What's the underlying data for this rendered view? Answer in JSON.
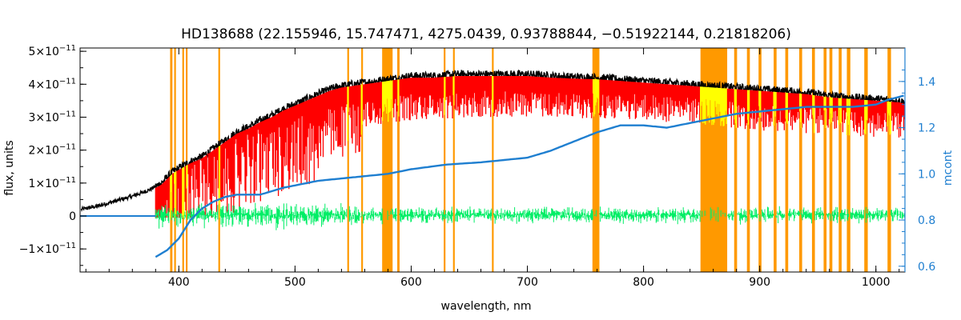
{
  "chart_data": {
    "type": "line",
    "title": "HD138688    (22.155946, 15.747471, 4275.0439, 0.93788844, −0.51922144, 0.21818206)",
    "xlabel": "wavelength, nm",
    "ylabel": "flux, units",
    "y2label": "mcont",
    "xlim": [
      315,
      1025
    ],
    "ylim": [
      -1.7e-11,
      5.1e-11
    ],
    "y2lim": [
      0.575,
      1.545
    ],
    "x_ticks": [
      {
        "value": 400,
        "label": "400"
      },
      {
        "value": 500,
        "label": "500"
      },
      {
        "value": 600,
        "label": "600"
      },
      {
        "value": 700,
        "label": "700"
      },
      {
        "value": 800,
        "label": "800"
      },
      {
        "value": 900,
        "label": "900"
      },
      {
        "value": 1000,
        "label": "1000"
      }
    ],
    "y_ticks": [
      {
        "value": -1e-11,
        "mant": "−1×10",
        "exp": "−11"
      },
      {
        "value": 0,
        "mant": "0",
        "exp": ""
      },
      {
        "value": 1e-11,
        "mant": "1×10",
        "exp": "−11"
      },
      {
        "value": 2e-11,
        "mant": "2×10",
        "exp": "−11"
      },
      {
        "value": 3e-11,
        "mant": "3×10",
        "exp": "−11"
      },
      {
        "value": 4e-11,
        "mant": "4×10",
        "exp": "−11"
      },
      {
        "value": 5e-11,
        "mant": "5×10",
        "exp": "−11"
      }
    ],
    "y2_ticks": [
      {
        "value": 0.6,
        "label": "0.6"
      },
      {
        "value": 0.8,
        "label": "0.8"
      },
      {
        "value": 1.0,
        "label": "1.0"
      },
      {
        "value": 1.2,
        "label": "1.2"
      },
      {
        "value": 1.4,
        "label": "1.4"
      }
    ],
    "grid": false,
    "colors": {
      "observed": "#000000",
      "model": "#ff0000",
      "masked_model": "#ffff00",
      "residuals": "#00ee66",
      "continuum": "#1f7fd0",
      "mask": "#ff9900",
      "zero_line": "#1f7fd0"
    },
    "series": [
      {
        "x": [
          316,
          330,
          345,
          360,
          375,
          385,
          395,
          410,
          420,
          430,
          440,
          450,
          460,
          470,
          480,
          490,
          500,
          510,
          520,
          530,
          540,
          560,
          580,
          600,
          620,
          640,
          660,
          680,
          700,
          720,
          740,
          760,
          780,
          800,
          820,
          840,
          860,
          880,
          900,
          920,
          940,
          960,
          980,
          1000,
          1020,
          1025
        ],
        "y": [
          2e-12,
          3e-12,
          4.5e-12,
          6e-12,
          8e-12,
          1e-11,
          1.35e-11,
          1.65e-11,
          1.8e-11,
          2.05e-11,
          2.3e-11,
          2.55e-11,
          2.7e-11,
          2.9e-11,
          3.05e-11,
          3.25e-11,
          3.4e-11,
          3.55e-11,
          3.7e-11,
          3.85e-11,
          3.95e-11,
          4.05e-11,
          4.15e-11,
          4.25e-11,
          4.25e-11,
          4.3e-11,
          4.3e-11,
          4.3e-11,
          4.3e-11,
          4.25e-11,
          4.22e-11,
          4.2e-11,
          4.15e-11,
          4.1e-11,
          4.05e-11,
          4e-11,
          3.95e-11,
          3.9e-11,
          3.85e-11,
          3.8e-11,
          3.75e-11,
          3.65e-11,
          3.6e-11,
          3.55e-11,
          3.5e-11,
          3.45e-11
        ]
      },
      {
        "x": [
          380,
          395,
          410,
          430,
          450,
          470,
          490,
          510,
          530,
          550,
          570,
          600,
          630,
          660,
          700,
          730,
          760,
          800,
          840,
          880,
          920,
          960,
          1000,
          1025
        ],
        "y": [
          1e-12,
          1e-11,
          1.6e-11,
          2e-11,
          2.35e-11,
          2.65e-11,
          2.9e-11,
          3.1e-11,
          3.3e-11,
          3.45e-11,
          3.55e-11,
          3.7e-11,
          3.75e-11,
          3.8e-11,
          3.8e-11,
          3.75e-11,
          3.75e-11,
          3.7e-11,
          3.6e-11,
          3.45e-11,
          3.35e-11,
          3.25e-11,
          3.2e-11,
          3.15e-11
        ]
      },
      {
        "x": [
          380,
          390,
          400,
          410,
          420,
          430,
          440,
          450,
          460,
          470,
          480,
          490,
          500,
          520,
          540,
          560,
          580,
          600,
          630,
          660,
          700,
          720,
          740,
          760,
          780,
          800,
          820,
          840,
          860,
          880,
          900,
          920,
          940,
          960,
          980,
          1000,
          1010,
          1025
        ],
        "y": [
          0.64,
          0.67,
          0.72,
          0.8,
          0.85,
          0.88,
          0.9,
          0.91,
          0.91,
          0.91,
          0.925,
          0.94,
          0.95,
          0.97,
          0.98,
          0.99,
          1.0,
          1.02,
          1.04,
          1.05,
          1.07,
          1.1,
          1.14,
          1.18,
          1.21,
          1.21,
          1.2,
          1.22,
          1.24,
          1.26,
          1.27,
          1.28,
          1.29,
          1.29,
          1.29,
          1.3,
          1.32,
          1.34
        ]
      }
    ],
    "residual_band": {
      "start": 380,
      "end": 1025,
      "center": 5e-13,
      "spread": 3.5e-12
    },
    "mask_regions": [
      [
        392.5,
        394.5
      ],
      [
        396,
        397.5
      ],
      [
        403,
        404.5
      ],
      [
        406,
        407.5
      ],
      [
        434,
        435.5
      ],
      [
        545,
        546.5
      ],
      [
        557,
        558.5
      ],
      [
        575,
        584
      ],
      [
        588,
        590
      ],
      [
        628,
        629.5
      ],
      [
        636,
        637.5
      ],
      [
        669.5,
        671
      ],
      [
        756,
        762
      ],
      [
        849,
        872
      ],
      [
        878,
        880.5
      ],
      [
        889,
        891.5
      ],
      [
        899,
        901.5
      ],
      [
        912,
        914.5
      ],
      [
        922,
        924.5
      ],
      [
        934,
        936.5
      ],
      [
        945,
        947.5
      ],
      [
        955,
        957.5
      ],
      [
        960,
        962.5
      ],
      [
        968,
        970.5
      ],
      [
        975,
        978
      ],
      [
        990,
        993
      ],
      [
        1010,
        1013
      ]
    ]
  }
}
